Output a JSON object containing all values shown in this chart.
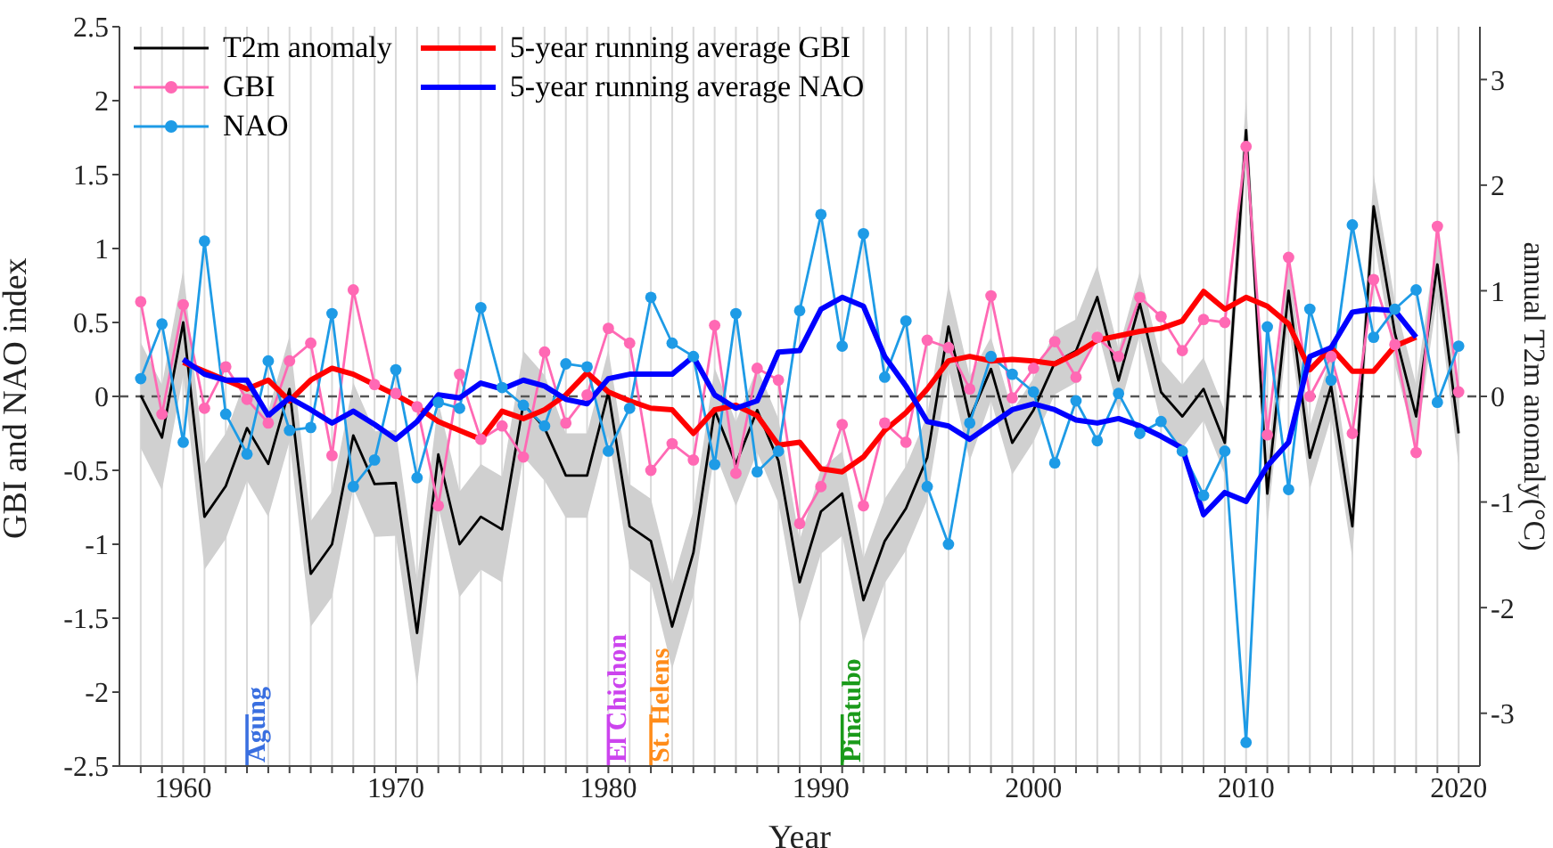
{
  "chart_data": {
    "type": "line",
    "xlabel": "Year",
    "ylabel": "GBI and NAO index",
    "y2label": "annual T2m anomaly(°C)",
    "x": [
      1958,
      1959,
      1960,
      1961,
      1962,
      1963,
      1964,
      1965,
      1966,
      1967,
      1968,
      1969,
      1970,
      1971,
      1972,
      1973,
      1974,
      1975,
      1976,
      1977,
      1978,
      1979,
      1980,
      1981,
      1982,
      1983,
      1984,
      1985,
      1986,
      1987,
      1988,
      1989,
      1990,
      1991,
      1992,
      1993,
      1994,
      1995,
      1996,
      1997,
      1998,
      1999,
      2000,
      2001,
      2002,
      2003,
      2004,
      2005,
      2006,
      2007,
      2008,
      2009,
      2010,
      2011,
      2012,
      2013,
      2014,
      2015,
      2016,
      2017,
      2018,
      2019,
      2020
    ],
    "xlim": [
      1957,
      2021
    ],
    "xticks": [
      {
        "value": 1958,
        "label": null
      },
      {
        "value": 1959,
        "label": null
      },
      1960,
      {
        "value": 1961,
        "label": null
      },
      {
        "value": 1962,
        "label": null
      },
      {
        "value": 1963,
        "label": null
      },
      {
        "value": 1964,
        "label": null
      },
      {
        "value": 1965,
        "label": null
      },
      {
        "value": 1966,
        "label": null
      },
      {
        "value": 1967,
        "label": null
      },
      {
        "value": 1968,
        "label": null
      },
      {
        "value": 1969,
        "label": null
      },
      1970,
      {
        "value": 1971,
        "label": null
      },
      {
        "value": 1972,
        "label": null
      },
      {
        "value": 1973,
        "label": null
      },
      {
        "value": 1974,
        "label": null
      },
      {
        "value": 1975,
        "label": null
      },
      {
        "value": 1976,
        "label": null
      },
      {
        "value": 1977,
        "label": null
      },
      {
        "value": 1978,
        "label": null
      },
      {
        "value": 1979,
        "label": null
      },
      1980,
      {
        "value": 1981,
        "label": null
      },
      {
        "value": 1982,
        "label": null
      },
      {
        "value": 1983,
        "label": null
      },
      {
        "value": 1984,
        "label": null
      },
      {
        "value": 1985,
        "label": null
      },
      {
        "value": 1986,
        "label": null
      },
      {
        "value": 1987,
        "label": null
      },
      {
        "value": 1988,
        "label": null
      },
      {
        "value": 1989,
        "label": null
      },
      1990,
      {
        "value": 1991,
        "label": null
      },
      {
        "value": 1992,
        "label": null
      },
      {
        "value": 1993,
        "label": null
      },
      {
        "value": 1994,
        "label": null
      },
      {
        "value": 1995,
        "label": null
      },
      {
        "value": 1996,
        "label": null
      },
      {
        "value": 1997,
        "label": null
      },
      {
        "value": 1998,
        "label": null
      },
      {
        "value": 1999,
        "label": null
      },
      2000,
      {
        "value": 2001,
        "label": null
      },
      {
        "value": 2002,
        "label": null
      },
      {
        "value": 2003,
        "label": null
      },
      {
        "value": 2004,
        "label": null
      },
      {
        "value": 2005,
        "label": null
      },
      {
        "value": 2006,
        "label": null
      },
      {
        "value": 2007,
        "label": null
      },
      {
        "value": 2008,
        "label": null
      },
      {
        "value": 2009,
        "label": null
      },
      2010,
      {
        "value": 2011,
        "label": null
      },
      {
        "value": 2012,
        "label": null
      },
      {
        "value": 2013,
        "label": null
      },
      {
        "value": 2014,
        "label": null
      },
      {
        "value": 2015,
        "label": null
      },
      {
        "value": 2016,
        "label": null
      },
      {
        "value": 2017,
        "label": null
      },
      {
        "value": 2018,
        "label": null
      },
      {
        "value": 2019,
        "label": null
      },
      2020
    ],
    "ylim": [
      -2.5,
      2.5
    ],
    "yticks": [
      -2.5,
      -2,
      -1.5,
      -1,
      -0.5,
      0,
      0.5,
      1,
      1.5,
      2,
      2.5
    ],
    "y2lim": [
      -3.5,
      3.5
    ],
    "y2ticks": [
      -3,
      -2,
      -1,
      0,
      1,
      2,
      3
    ],
    "grid": "x",
    "legend": "top left",
    "series": [
      {
        "name": "T2m anomaly",
        "color": "#000000",
        "axis": "y2",
        "marker": "none",
        "values": [
          0.01,
          -0.39,
          0.7,
          -1.14,
          -0.85,
          -0.3,
          -0.64,
          0.07,
          -1.68,
          -1.4,
          -0.37,
          -0.83,
          -0.82,
          -2.24,
          -0.55,
          -1.4,
          -1.14,
          -1.26,
          -0.07,
          -0.3,
          -0.75,
          -0.75,
          0.04,
          -1.23,
          -1.37,
          -2.18,
          -1.48,
          -0.13,
          -0.64,
          -0.13,
          -0.61,
          -1.76,
          -1.09,
          -0.92,
          -1.93,
          -1.37,
          -1.06,
          -0.58,
          0.66,
          -0.21,
          0.26,
          -0.44,
          -0.13,
          0.32,
          0.43,
          0.94,
          0.15,
          0.88,
          0.04,
          -0.19,
          0.07,
          -0.44,
          2.52,
          -0.92,
          1.0,
          -0.58,
          0.1,
          -1.23,
          1.8,
          0.6,
          -0.19,
          1.25,
          -0.35
        ],
        "lower": [
          -0.49,
          -0.89,
          0.2,
          -1.64,
          -1.35,
          -0.8,
          -1.14,
          -0.43,
          -2.18,
          -1.9,
          -0.87,
          -1.33,
          -1.32,
          -2.74,
          -1.05,
          -1.9,
          -1.64,
          -1.76,
          -0.57,
          -0.8,
          -1.15,
          -1.15,
          -0.36,
          -1.63,
          -1.77,
          -2.58,
          -1.88,
          -0.53,
          -1.04,
          -0.53,
          -1.01,
          -2.16,
          -1.49,
          -1.32,
          -2.33,
          -1.77,
          -1.46,
          -0.98,
          0.26,
          -0.61,
          -0.04,
          -0.74,
          -0.43,
          0.02,
          0.13,
          0.64,
          -0.15,
          0.58,
          -0.26,
          -0.49,
          -0.23,
          -0.74,
          2.22,
          -1.22,
          0.7,
          -0.88,
          -0.2,
          -1.53,
          1.5,
          0.3,
          -0.49,
          0.95,
          -0.65
        ],
        "upper": [
          0.51,
          0.11,
          1.2,
          -0.64,
          -0.35,
          0.2,
          -0.14,
          0.57,
          -1.18,
          -0.9,
          0.13,
          -0.33,
          -0.32,
          -1.74,
          -0.05,
          -0.9,
          -0.64,
          -0.76,
          0.43,
          0.2,
          -0.35,
          -0.35,
          0.44,
          -0.83,
          -0.97,
          -1.78,
          -1.08,
          0.27,
          -0.24,
          0.27,
          -0.21,
          -1.36,
          -0.69,
          -0.52,
          -1.53,
          -0.97,
          -0.66,
          -0.18,
          1.06,
          0.19,
          0.56,
          -0.14,
          0.17,
          0.62,
          0.73,
          1.24,
          0.45,
          1.18,
          0.34,
          0.11,
          0.37,
          -0.14,
          2.82,
          -0.62,
          1.3,
          -0.28,
          0.4,
          -0.93,
          2.1,
          0.9,
          0.11,
          1.55,
          -0.05
        ]
      },
      {
        "name": "GBI",
        "color": "#ff69b4",
        "marker": "circle",
        "values": [
          0.64,
          -0.12,
          0.62,
          -0.08,
          0.2,
          -0.02,
          -0.18,
          0.24,
          0.36,
          -0.4,
          0.72,
          0.08,
          0.02,
          -0.07,
          -0.74,
          0.15,
          -0.29,
          -0.2,
          -0.41,
          0.3,
          -0.18,
          0.01,
          0.46,
          0.36,
          -0.5,
          -0.32,
          -0.43,
          0.48,
          -0.52,
          0.19,
          0.11,
          -0.86,
          -0.61,
          -0.19,
          -0.74,
          -0.18,
          -0.31,
          0.38,
          0.33,
          0.05,
          0.68,
          -0.01,
          0.19,
          0.37,
          0.13,
          0.4,
          0.27,
          0.67,
          0.54,
          0.31,
          0.52,
          0.5,
          1.69,
          -0.26,
          0.94,
          0.0,
          0.27,
          -0.25,
          0.79,
          0.35,
          -0.38,
          1.15,
          0.03
        ]
      },
      {
        "name": "NAO",
        "color": "#1e9be6",
        "marker": "circle",
        "values": [
          0.12,
          0.49,
          -0.31,
          1.05,
          -0.12,
          -0.39,
          0.24,
          -0.23,
          -0.21,
          0.56,
          -0.61,
          -0.43,
          0.18,
          -0.55,
          -0.04,
          -0.08,
          0.6,
          0.06,
          -0.06,
          -0.2,
          0.22,
          0.2,
          -0.37,
          -0.08,
          0.67,
          0.36,
          0.27,
          -0.46,
          0.56,
          -0.51,
          -0.37,
          0.58,
          1.23,
          0.34,
          1.1,
          0.13,
          0.51,
          -0.61,
          -1.0,
          -0.18,
          0.27,
          0.15,
          0.03,
          -0.45,
          -0.03,
          -0.3,
          0.02,
          -0.25,
          -0.17,
          -0.37,
          -0.67,
          -0.37,
          -2.34,
          0.47,
          -0.63,
          0.59,
          0.11,
          1.16,
          0.4,
          0.59,
          0.72,
          -0.04,
          0.34
        ]
      },
      {
        "name": "5-year running average GBI",
        "color": "#ff0000",
        "marker": "none",
        "values": [
          null,
          null,
          0.23,
          0.17,
          0.11,
          0.05,
          0.11,
          -0.03,
          0.11,
          0.19,
          0.15,
          0.08,
          0.01,
          -0.07,
          -0.17,
          -0.23,
          -0.29,
          -0.1,
          -0.15,
          -0.09,
          0.01,
          0.16,
          0.03,
          -0.03,
          -0.08,
          -0.09,
          -0.25,
          -0.09,
          -0.06,
          -0.13,
          -0.33,
          -0.31,
          -0.49,
          -0.51,
          -0.41,
          -0.23,
          -0.11,
          0.05,
          0.24,
          0.27,
          0.24,
          0.25,
          0.24,
          0.22,
          0.29,
          0.38,
          0.41,
          0.44,
          0.46,
          0.51,
          0.71,
          0.59,
          0.67,
          0.61,
          0.49,
          0.18,
          0.33,
          0.17,
          0.17,
          0.34,
          0.4,
          null,
          null
        ]
      },
      {
        "name": "5-year running average NAO",
        "color": "#0000ff",
        "marker": "none",
        "values": [
          null,
          null,
          0.25,
          0.15,
          0.11,
          0.11,
          -0.13,
          -0.01,
          -0.09,
          -0.18,
          -0.1,
          -0.19,
          -0.29,
          -0.17,
          0.01,
          -0.01,
          0.09,
          0.05,
          0.11,
          0.07,
          -0.02,
          -0.05,
          0.12,
          0.15,
          0.15,
          0.15,
          0.27,
          0.01,
          -0.08,
          -0.03,
          0.3,
          0.31,
          0.59,
          0.67,
          0.61,
          0.27,
          0.07,
          -0.17,
          -0.2,
          -0.29,
          -0.19,
          -0.09,
          -0.05,
          -0.09,
          -0.16,
          -0.18,
          -0.15,
          -0.2,
          -0.27,
          -0.35,
          -0.8,
          -0.65,
          -0.71,
          -0.47,
          -0.31,
          0.27,
          0.33,
          0.57,
          0.59,
          0.58,
          0.4,
          null,
          null
        ]
      }
    ],
    "ref_lines": [
      {
        "axis": "y",
        "value": 0,
        "color": "#555555",
        "line_style": "dashed"
      },
      {
        "axis": "x",
        "value": 1963,
        "label": "Agung",
        "color": "#3a6fe0"
      },
      {
        "axis": "x",
        "value": 1980,
        "label": "El Chichon",
        "color": "#cc44ee"
      },
      {
        "axis": "x",
        "value": 1982,
        "label": "St. Helens",
        "color": "#ff8c1a"
      },
      {
        "axis": "x",
        "value": 1991,
        "label": "Pinatubo",
        "color": "#1a9a1a"
      }
    ]
  }
}
